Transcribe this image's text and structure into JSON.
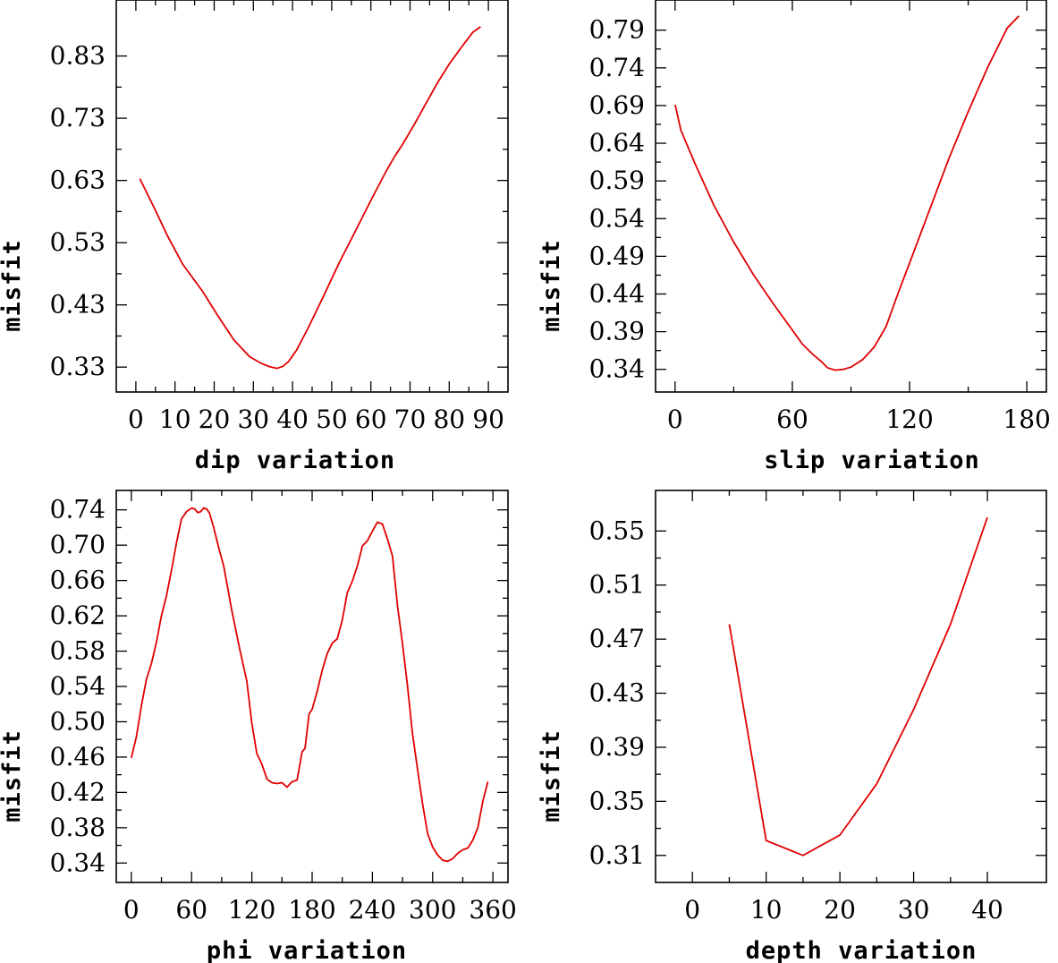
{
  "chart_data": [
    {
      "type": "line",
      "id": "dip",
      "xlabel_parts": [
        "dip",
        "variation"
      ],
      "ylabel": "misfit",
      "xlim": [
        -5,
        95
      ],
      "ylim": [
        0.29,
        0.92
      ],
      "xticks": [
        0,
        10,
        20,
        30,
        40,
        50,
        60,
        70,
        80,
        90
      ],
      "yticks": [
        0.33,
        0.43,
        0.53,
        0.63,
        0.73,
        0.83
      ],
      "ytick_labels": [
        "0.33",
        "0.43",
        "0.53",
        "0.63",
        "0.73",
        "0.83"
      ],
      "x": [
        1,
        5,
        8,
        12,
        17,
        21,
        25,
        29,
        32,
        34,
        36,
        37.5,
        39,
        41,
        44,
        48,
        52,
        56,
        60,
        64,
        66,
        68,
        71,
        74,
        77,
        80,
        83,
        86,
        88
      ],
      "y": [
        0.633,
        0.582,
        0.542,
        0.495,
        0.452,
        0.412,
        0.374,
        0.347,
        0.336,
        0.331,
        0.328,
        0.331,
        0.339,
        0.357,
        0.393,
        0.445,
        0.499,
        0.548,
        0.598,
        0.646,
        0.668,
        0.687,
        0.719,
        0.753,
        0.787,
        0.817,
        0.843,
        0.868,
        0.877
      ]
    },
    {
      "type": "line",
      "id": "slip",
      "xlabel_parts": [
        "slip",
        "variation"
      ],
      "ylabel": "misfit",
      "xlim": [
        -10,
        190
      ],
      "ylim": [
        0.31,
        0.83
      ],
      "xticks": [
        0,
        60,
        120,
        180
      ],
      "yticks": [
        0.34,
        0.39,
        0.44,
        0.49,
        0.54,
        0.59,
        0.64,
        0.69,
        0.74,
        0.79
      ],
      "ytick_labels": [
        "0.34",
        "0.39",
        "0.44",
        "0.49",
        "0.54",
        "0.59",
        "0.64",
        "0.69",
        "0.74",
        "0.79"
      ],
      "x": [
        0,
        3,
        10,
        20,
        30,
        40,
        50,
        60,
        65,
        70,
        75,
        78,
        82,
        86,
        90,
        96,
        102,
        108,
        114,
        120,
        130,
        140,
        150,
        160,
        170,
        176
      ],
      "y": [
        0.691,
        0.657,
        0.614,
        0.557,
        0.509,
        0.466,
        0.428,
        0.392,
        0.374,
        0.361,
        0.35,
        0.342,
        0.339,
        0.34,
        0.343,
        0.353,
        0.37,
        0.397,
        0.44,
        0.481,
        0.55,
        0.619,
        0.682,
        0.741,
        0.793,
        0.809
      ]
    },
    {
      "type": "line",
      "id": "phi",
      "xlabel_parts": [
        "phi",
        "variation"
      ],
      "ylabel": "misfit",
      "xlim": [
        -15,
        375
      ],
      "ylim": [
        0.318,
        0.762
      ],
      "xticks": [
        0,
        60,
        120,
        180,
        240,
        300,
        360
      ],
      "yticks": [
        0.34,
        0.38,
        0.42,
        0.46,
        0.5,
        0.54,
        0.58,
        0.62,
        0.66,
        0.7,
        0.74
      ],
      "ytick_labels": [
        "0.34",
        "0.38",
        "0.42",
        "0.46",
        "0.50",
        "0.54",
        "0.58",
        "0.62",
        "0.66",
        "0.70",
        "0.74"
      ],
      "x": [
        0,
        5,
        10,
        15,
        20,
        25,
        30,
        35,
        40,
        45,
        50,
        55,
        60,
        63,
        66,
        69,
        72,
        75,
        78,
        82,
        87,
        92,
        100,
        108,
        115,
        120,
        125,
        130,
        135,
        140,
        145,
        150,
        155,
        160,
        165,
        170,
        173,
        177,
        180,
        185,
        190,
        195,
        200,
        205,
        210,
        215,
        220,
        225,
        230,
        235,
        240,
        245,
        250,
        255,
        260,
        265,
        270,
        275,
        280,
        285,
        290,
        295,
        300,
        305,
        310,
        315,
        320,
        325,
        330,
        335,
        340,
        345,
        350,
        355
      ],
      "y": [
        0.459,
        0.483,
        0.518,
        0.548,
        0.566,
        0.59,
        0.62,
        0.643,
        0.672,
        0.703,
        0.73,
        0.738,
        0.742,
        0.741,
        0.737,
        0.738,
        0.742,
        0.741,
        0.736,
        0.72,
        0.697,
        0.676,
        0.626,
        0.582,
        0.546,
        0.498,
        0.464,
        0.452,
        0.435,
        0.431,
        0.43,
        0.431,
        0.426,
        0.432,
        0.434,
        0.466,
        0.47,
        0.509,
        0.514,
        0.534,
        0.558,
        0.577,
        0.589,
        0.594,
        0.615,
        0.646,
        0.659,
        0.676,
        0.699,
        0.705,
        0.716,
        0.726,
        0.724,
        0.707,
        0.688,
        0.631,
        0.588,
        0.54,
        0.486,
        0.446,
        0.407,
        0.373,
        0.358,
        0.349,
        0.343,
        0.342,
        0.345,
        0.351,
        0.355,
        0.357,
        0.366,
        0.38,
        0.41,
        0.432
      ]
    },
    {
      "type": "line",
      "id": "depth",
      "xlabel_parts": [
        "depth",
        "variation"
      ],
      "ylabel": "misfit",
      "xlim": [
        -5,
        48
      ],
      "ylim": [
        0.29,
        0.58
      ],
      "xticks": [
        0,
        10,
        20,
        30,
        40
      ],
      "yticks": [
        0.31,
        0.35,
        0.39,
        0.43,
        0.47,
        0.51,
        0.55
      ],
      "ytick_labels": [
        "0.31",
        "0.35",
        "0.39",
        "0.43",
        "0.47",
        "0.51",
        "0.55"
      ],
      "x": [
        5,
        10,
        15,
        20,
        25,
        30,
        35,
        40
      ],
      "y": [
        0.481,
        0.321,
        0.31,
        0.325,
        0.363,
        0.418,
        0.481,
        0.56
      ]
    }
  ]
}
